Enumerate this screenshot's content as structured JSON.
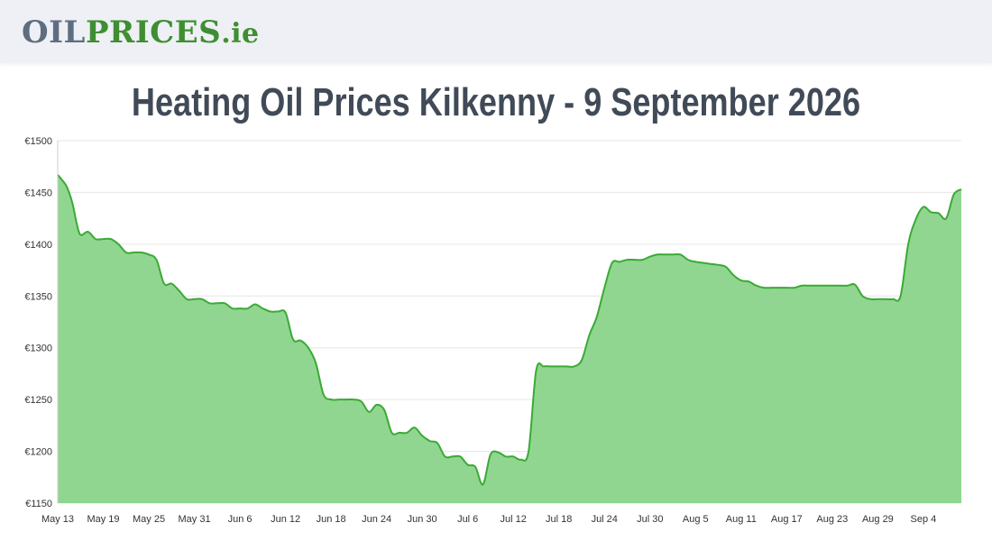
{
  "header": {
    "logo_part1": "OIL",
    "logo_part2": "PRICES",
    "logo_part3": ".ie"
  },
  "page_title": "Heating Oil Prices Kilkenny - 9 September 2026",
  "colors": {
    "line": "#3aaa35",
    "fill": "#90d690",
    "grid": "#e6e6e6"
  },
  "chart_data": {
    "type": "area",
    "currency": "€",
    "ylim": [
      1150,
      1500
    ],
    "yticks": [
      1150,
      1200,
      1250,
      1300,
      1350,
      1400,
      1450,
      1500
    ],
    "ytick_labels": [
      "€1150",
      "€1200",
      "€1250",
      "€1300",
      "€1350",
      "€1400",
      "€1450",
      "€1500"
    ],
    "xticks": [
      "May 13",
      "May 19",
      "May 25",
      "May 31",
      "Jun 6",
      "Jun 12",
      "Jun 18",
      "Jun 24",
      "Jun 30",
      "Jul 6",
      "Jul 12",
      "Jul 18",
      "Jul 24",
      "Jul 30",
      "Aug 5",
      "Aug 11",
      "Aug 17",
      "Aug 23",
      "Aug 29",
      "Sep 4"
    ],
    "grid": true,
    "legend": "none",
    "days": [
      0,
      1,
      1.5,
      2,
      2.5,
      3,
      4,
      5,
      6,
      7,
      8,
      9,
      10,
      11,
      12,
      13,
      14,
      15,
      16,
      17,
      18,
      19,
      20,
      21,
      22,
      23,
      24,
      25,
      26,
      27,
      28,
      29,
      30,
      31,
      32,
      33,
      34,
      35,
      36,
      37,
      38,
      39,
      40,
      41,
      42,
      43,
      44,
      45,
      46,
      47,
      48,
      49,
      50,
      51,
      52,
      53,
      54,
      55,
      56,
      57,
      58,
      59,
      60,
      61,
      62,
      63,
      64,
      65,
      66,
      67,
      68,
      69,
      70,
      71,
      72,
      73,
      74,
      75,
      76,
      77,
      78,
      79,
      80,
      81,
      82,
      83,
      84,
      85,
      86,
      87,
      88,
      89,
      90,
      91,
      92,
      93,
      94,
      95,
      96,
      97,
      98,
      99,
      100,
      101,
      102,
      103,
      104,
      105,
      106,
      107,
      108,
      109,
      110,
      111,
      112,
      113,
      114,
      115,
      116,
      117,
      118,
      119
    ],
    "values": [
      1467,
      1458,
      1450,
      1438,
      1420,
      1409,
      1412,
      1405,
      1405,
      1405,
      1400,
      1392,
      1392,
      1392,
      1390,
      1385,
      1362,
      1362,
      1355,
      1347,
      1347,
      1347,
      1343,
      1343,
      1343,
      1338,
      1338,
      1338,
      1342,
      1338,
      1335,
      1335,
      1334,
      1308,
      1307,
      1300,
      1285,
      1255,
      1250,
      1250,
      1250,
      1250,
      1248,
      1238,
      1245,
      1240,
      1218,
      1218,
      1218,
      1223,
      1215,
      1210,
      1208,
      1195,
      1195,
      1195,
      1187,
      1185,
      1168,
      1197,
      1199,
      1195,
      1195,
      1192,
      1200,
      1278,
      1282,
      1282,
      1282,
      1282,
      1282,
      1288,
      1312,
      1330,
      1358,
      1382,
      1383,
      1385,
      1385,
      1385,
      1388,
      1390,
      1390,
      1390,
      1390,
      1385,
      1383,
      1382,
      1381,
      1380,
      1378,
      1370,
      1365,
      1364,
      1360,
      1358,
      1358,
      1358,
      1358,
      1358,
      1360,
      1360,
      1360,
      1360,
      1360,
      1360,
      1360,
      1361,
      1350,
      1347,
      1347,
      1347,
      1347,
      1350,
      1400,
      1424,
      1436,
      1431,
      1430,
      1425,
      1448,
      1453
    ]
  }
}
